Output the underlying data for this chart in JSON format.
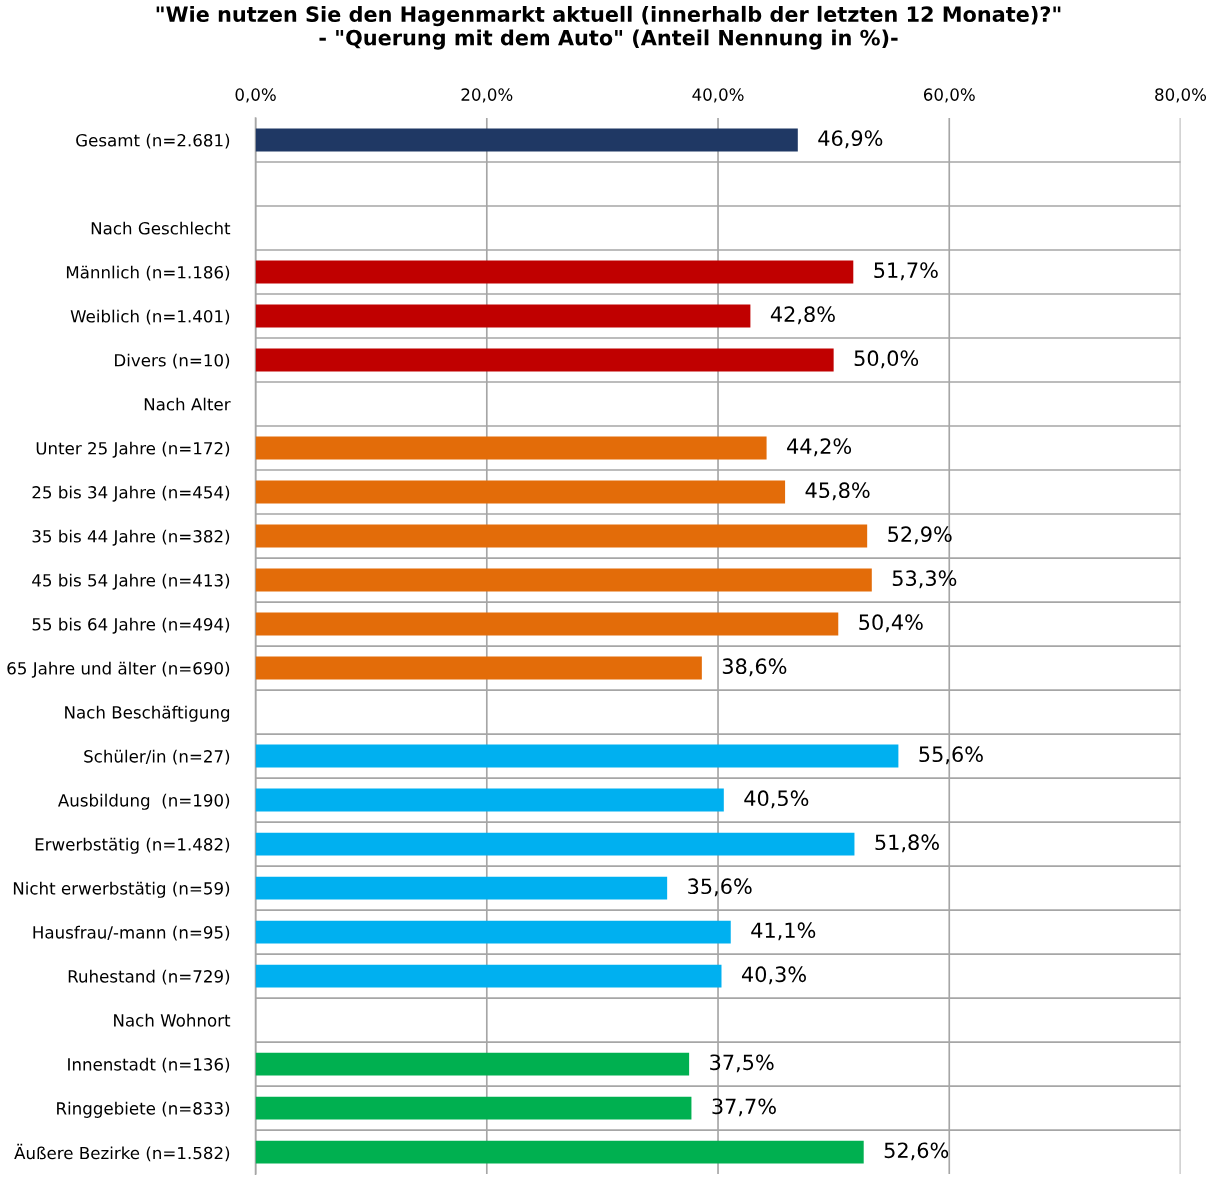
{
  "chart_data": {
    "type": "bar",
    "orientation": "horizontal",
    "title": "\"Wie nutzen Sie den Hagenmarkt aktuell (innerhalb der letzten 12 Monate)?\"\n- \"Querung mit dem Auto\" (Anteil Nennung in %)-",
    "categories": [
      "Gesamt (n=2.681)",
      null,
      "Nach Geschlecht",
      "Männlich (n=1.186)",
      "Weiblich (n=1.401)",
      "Divers (n=10)",
      "Nach Alter",
      "Unter 25 Jahre (n=172)",
      "25 bis 34 Jahre (n=454)",
      "35 bis 44 Jahre (n=382)",
      "45 bis 54 Jahre (n=413)",
      "55 bis 64 Jahre (n=494)",
      "65 Jahre und älter (n=690)",
      "Nach Beschäftigung",
      "Schüler/in (n=27)",
      "Ausbildung  (n=190)",
      "Erwerbstätig (n=1.482)",
      "Nicht erwerbstätig (n=59)",
      "Hausfrau/-mann (n=95)",
      "Ruhestand (n=729)",
      "Nach Wohnort",
      "Innenstadt (n=136)",
      "Ringgebiete (n=833)",
      "Äußere Bezirke (n=1.582)"
    ],
    "values": [
      46.9,
      null,
      null,
      51.7,
      42.8,
      50.0,
      null,
      44.2,
      45.8,
      52.9,
      53.3,
      50.4,
      38.6,
      null,
      55.6,
      40.5,
      51.8,
      35.6,
      41.1,
      40.3,
      null,
      37.5,
      37.7,
      52.6
    ],
    "value_labels": [
      "46,9%",
      null,
      null,
      "51,7%",
      "42,8%",
      "50,0%",
      null,
      "44,2%",
      "45,8%",
      "52,9%",
      "53,3%",
      "50,4%",
      "38,6%",
      null,
      "55,6%",
      "40,5%",
      "51,8%",
      "35,6%",
      "41,1%",
      "40,3%",
      null,
      "37,5%",
      "37,7%",
      "52,6%"
    ],
    "colors": [
      "#1f3864",
      null,
      null,
      "#c00000",
      "#c00000",
      "#c00000",
      null,
      "#e36c09",
      "#e36c09",
      "#e36c09",
      "#e36c09",
      "#e36c09",
      "#e36c09",
      null,
      "#00b0f0",
      "#00b0f0",
      "#00b0f0",
      "#00b0f0",
      "#00b0f0",
      "#00b0f0",
      null,
      "#00b050",
      "#00b050",
      "#00b050"
    ],
    "xlim": [
      0,
      80
    ],
    "xticks": [
      {
        "value": 0,
        "label": "0,0%"
      },
      {
        "value": 20,
        "label": "20,0%"
      },
      {
        "value": 40,
        "label": "40,0%"
      },
      {
        "value": 60,
        "label": "60,0%"
      },
      {
        "value": 80,
        "label": "80,0%"
      }
    ],
    "grid": true,
    "legend": false
  }
}
